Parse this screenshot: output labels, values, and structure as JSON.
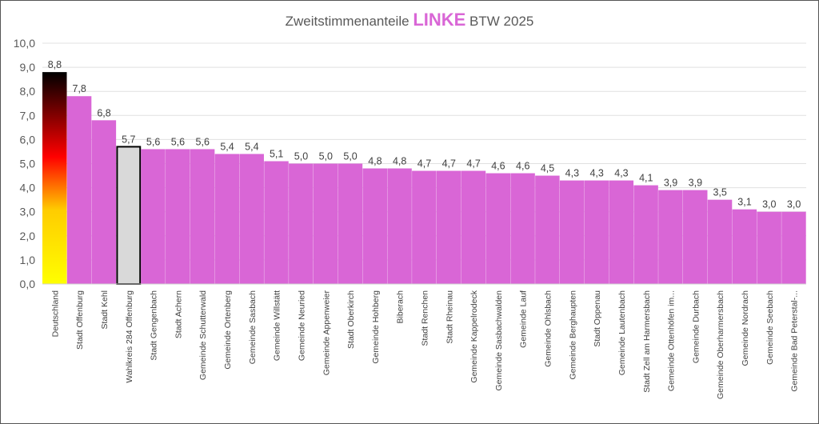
{
  "chart_data": {
    "type": "bar",
    "title": {
      "prefix": "Zweitstimmenanteile",
      "highlight": "LINKE",
      "suffix": "BTW 2025"
    },
    "xlabel": "",
    "ylabel": "",
    "ylim": [
      0,
      10
    ],
    "yticks": [
      "0,0",
      "1,0",
      "2,0",
      "3,0",
      "4,0",
      "5,0",
      "6,0",
      "7,0",
      "8,0",
      "9,0",
      "10,0"
    ],
    "grid": true,
    "categories": [
      "Deutschland",
      "Stadt Offenburg",
      "Stadt Kehl",
      "Wahlkreis 284 Offenburg",
      "Stadt Gengenbach",
      "Stadt Achern",
      "Gemeinde Schutterwald",
      "Gemeinde Ortenberg",
      "Gemeinde Sasbach",
      "Gemeinde Willstätt",
      "Gemeinde Neuried",
      "Gemeinde Appenweier",
      "Stadt Oberkirch",
      "Gemeinde Hohberg",
      "Biberach",
      "Stadt Renchen",
      "Stadt Rheinau",
      "Gemeinde Kappelrodeck",
      "Gemeinde Sasbachwalden",
      "Gemeinde Lauf",
      "Gemeinde Ohlsbach",
      "Gemeinde Berghaupten",
      "Stadt Oppenau",
      "Gemeinde Lautenbach",
      "Stadt Zell am Harmersbach",
      "Gemeinde Ottenhöfen im...",
      "Gemeinde Durbach",
      "Gemeinde Oberharmersbach",
      "Gemeinde Nordrach",
      "Gemeinde Seebach",
      "Gemeinde Bad Peterstal-..."
    ],
    "values": [
      8.8,
      7.8,
      6.8,
      5.7,
      5.6,
      5.6,
      5.6,
      5.4,
      5.4,
      5.1,
      5.0,
      5.0,
      5.0,
      4.8,
      4.8,
      4.7,
      4.7,
      4.7,
      4.6,
      4.6,
      4.5,
      4.3,
      4.3,
      4.3,
      4.1,
      3.9,
      3.9,
      3.5,
      3.1,
      3.0,
      3.0
    ],
    "data_labels": [
      "8,8",
      "7,8",
      "6,8",
      "5,7",
      "5,6",
      "5,6",
      "5,6",
      "5,4",
      "5,4",
      "5,1",
      "5,0",
      "5,0",
      "5,0",
      "4,8",
      "4,8",
      "4,7",
      "4,7",
      "4,7",
      "4,6",
      "4,6",
      "4,5",
      "4,3",
      "4,3",
      "4,3",
      "4,1",
      "3,9",
      "3,9",
      "3,5",
      "3,1",
      "3,0",
      "3,0"
    ],
    "colors": {
      "bar": "#d966d6",
      "highlight_title": "#d966d6",
      "wahlkreis": "#d9d9d9",
      "deutschland_gradient": [
        "#000000",
        "#ff0000",
        "#ffcc00",
        "#ffff00"
      ]
    }
  }
}
